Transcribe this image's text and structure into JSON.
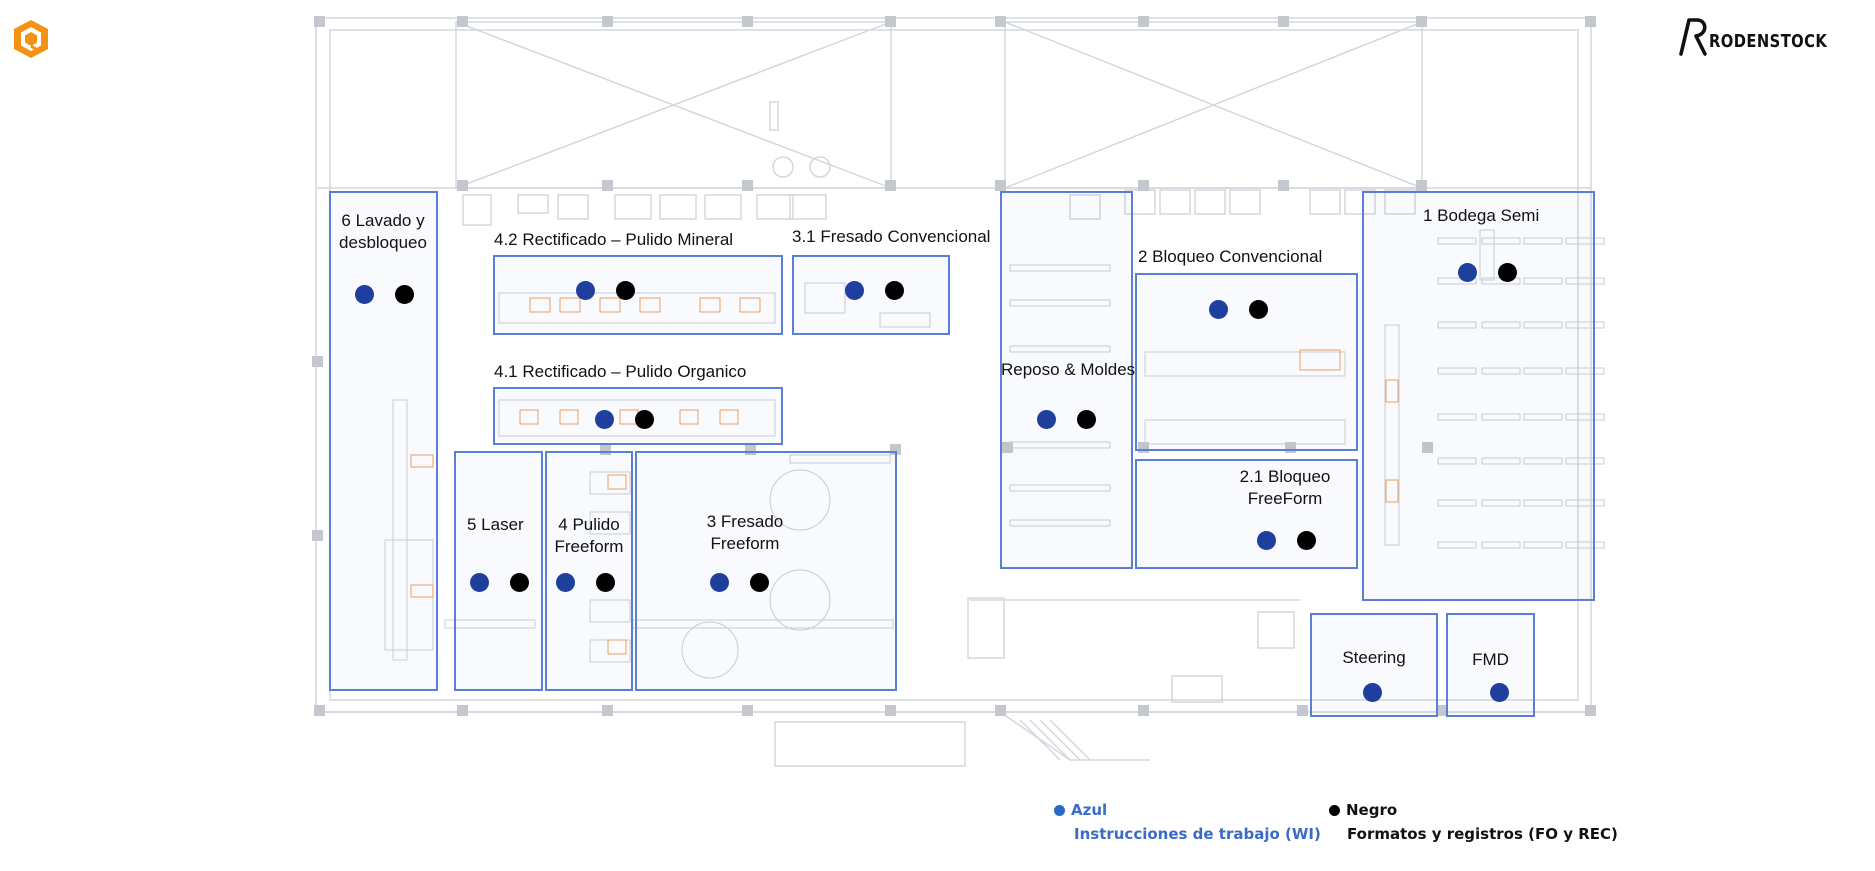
{
  "brand": {
    "name": "RODENSTOCK",
    "mark": "R",
    "logo_icon": "hexagon-logo-icon",
    "colors": {
      "logo_orange": "#f39214",
      "zone_border": "#5b7fd6",
      "blue_dot": "#1f3f9e",
      "black_dot": "#000000",
      "plan_lines": "#c9ced6",
      "machine_orange": "#f0a05a"
    }
  },
  "zones": [
    {
      "id": "6",
      "label": "6 Lavado y desbloqueo"
    },
    {
      "id": "4.2",
      "label": "4.2 Rectificado – Pulido  Mineral"
    },
    {
      "id": "3.1",
      "label": "3.1 Fresado Convencional"
    },
    {
      "id": "4.1",
      "label": "4.1 Rectificado – Pulido  Organico"
    },
    {
      "id": "5",
      "label": "5 Laser"
    },
    {
      "id": "4",
      "label": "4 Pulido Freeform"
    },
    {
      "id": "3",
      "label": "3 Fresado Freeform"
    },
    {
      "id": "rm",
      "label": "Reposo & Moldes"
    },
    {
      "id": "2",
      "label": "2 Bloqueo Convencional"
    },
    {
      "id": "2.1",
      "label": "2.1 Bloqueo FreeForm"
    },
    {
      "id": "1",
      "label": "1 Bodega Semi"
    },
    {
      "id": "st",
      "label": "Steering"
    },
    {
      "id": "fmd",
      "label": "FMD"
    }
  ],
  "legend": {
    "blue_title": "Azul",
    "blue_desc": "Instrucciones de trabajo (WI)",
    "black_title": "Negro",
    "black_desc": "Formatos y registros (FO y REC)"
  }
}
